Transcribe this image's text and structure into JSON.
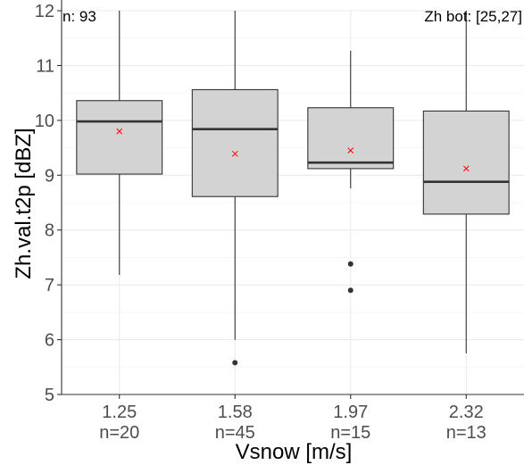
{
  "chart_data": {
    "type": "box",
    "xlabel": "Vsnow [m/s]",
    "ylabel": "Zh.val.t2p [dBZ]",
    "ylim": [
      5,
      12
    ],
    "yticks": [
      5,
      6,
      7,
      8,
      9,
      10,
      11,
      12
    ],
    "grid": true,
    "annotations": {
      "top_left": "n: 93",
      "top_right": "Zh bot: [25,27]"
    },
    "categories": [
      "1.25",
      "1.58",
      "1.97",
      "2.32"
    ],
    "counts": [
      "n=20",
      "n=45",
      "n=15",
      "n=13"
    ],
    "boxes": [
      {
        "q1": 9.02,
        "median": 9.98,
        "q3": 10.36,
        "whisker_low": 7.18,
        "whisker_high": 12.0,
        "mean": 9.8,
        "outliers": []
      },
      {
        "q1": 8.61,
        "median": 9.84,
        "q3": 10.56,
        "whisker_low": 6.0,
        "whisker_high": 12.0,
        "mean": 9.39,
        "outliers": [
          5.58
        ]
      },
      {
        "q1": 9.12,
        "median": 9.23,
        "q3": 10.23,
        "whisker_low": 8.76,
        "whisker_high": 11.27,
        "mean": 9.45,
        "outliers": [
          7.38,
          6.9
        ]
      },
      {
        "q1": 8.29,
        "median": 8.88,
        "q3": 10.17,
        "whisker_low": 5.75,
        "whisker_high": 12.0,
        "mean": 9.12,
        "outliers": []
      }
    ],
    "colors": {
      "box_fill": "#d3d3d3",
      "box_line": "#333333",
      "mean_marker": "#ff0000",
      "grid_major": "#ebebeb",
      "grid_minor": "#f5f5f5"
    }
  }
}
